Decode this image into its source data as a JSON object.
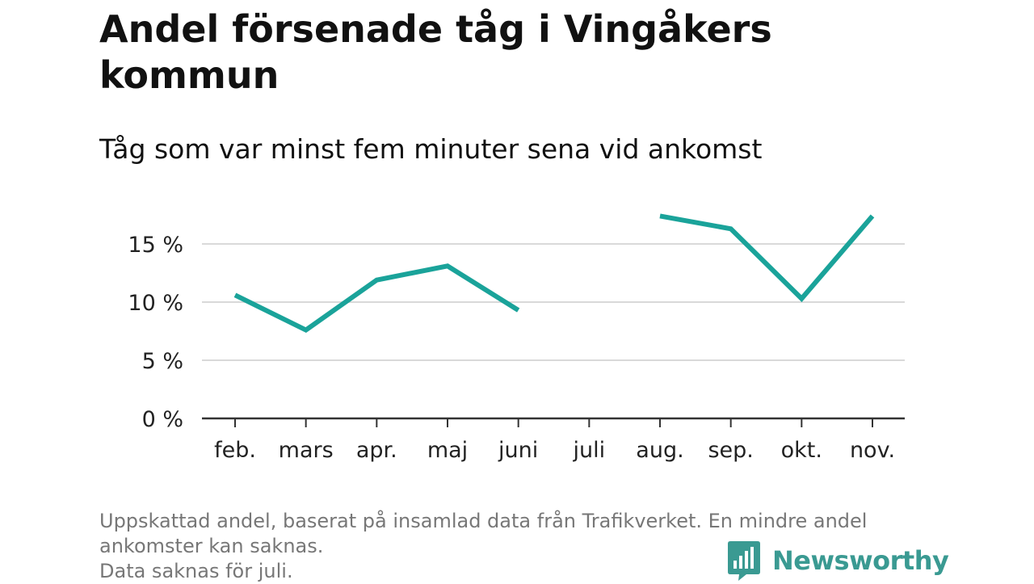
{
  "title": "Andel försenade tåg i Vingåkers kommun",
  "subtitle": "Tåg som var minst fem minuter sena vid ankomst",
  "footnote": {
    "line1": "Uppskattad andel, baserat på insamlad data från Trafikverket. En mindre andel ankomster kan saknas.",
    "line2": "Data saknas för juli."
  },
  "logo": {
    "text": "Newsworthy",
    "icon": "bar-chart-icon",
    "color": "#3a9a92"
  },
  "chart_data": {
    "type": "line",
    "categories": [
      "feb.",
      "mars",
      "apr.",
      "maj",
      "juni",
      "juli",
      "aug.",
      "sep.",
      "okt.",
      "nov."
    ],
    "series": [
      {
        "values": [
          10.6,
          7.6,
          11.9,
          13.1,
          9.3,
          null,
          17.4,
          16.3,
          10.3,
          17.4
        ]
      }
    ],
    "ylim": [
      0,
      20
    ],
    "yticks": [
      0,
      5,
      10,
      15
    ],
    "ytick_labels": [
      "0 %",
      "5 %",
      "10 %",
      "15 %"
    ],
    "grid": true,
    "line_color": "#1aa39a",
    "xlabel": "",
    "ylabel": ""
  }
}
